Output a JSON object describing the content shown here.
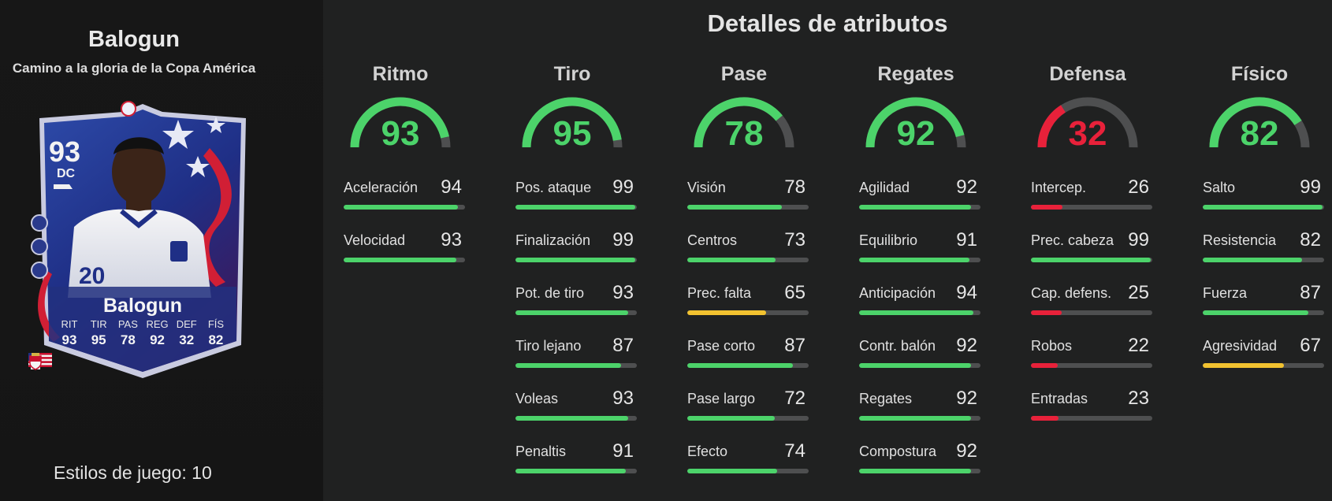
{
  "player": {
    "name": "Balogun",
    "subtitle": "Camino a la gloria de la Copa América",
    "styles_label": "Estilos de juego: 10"
  },
  "card": {
    "rating": "93",
    "position": "DC",
    "name": "Balogun",
    "stats": [
      {
        "label": "RIT",
        "value": "93"
      },
      {
        "label": "TIR",
        "value": "95"
      },
      {
        "label": "PAS",
        "value": "78"
      },
      {
        "label": "REG",
        "value": "92"
      },
      {
        "label": "DEF",
        "value": "32"
      },
      {
        "label": "FÍS",
        "value": "82"
      }
    ],
    "icons": [
      "usa-flag-icon",
      "ligue1-logo-icon",
      "monaco-crest-icon"
    ]
  },
  "details_title": "Detalles de atributos",
  "colors": {
    "green": "#4cd36a",
    "yellow": "#f2c230",
    "red": "#e8213a",
    "track": "#4e4f50"
  },
  "categories": [
    {
      "name": "Ritmo",
      "value": 93,
      "color": "green",
      "attributes": [
        {
          "label": "Aceleración",
          "value": 94,
          "color": "green"
        },
        {
          "label": "Velocidad",
          "value": 93,
          "color": "green"
        }
      ]
    },
    {
      "name": "Tiro",
      "value": 95,
      "color": "green",
      "attributes": [
        {
          "label": "Pos. ataque",
          "value": 99,
          "color": "green"
        },
        {
          "label": "Finalización",
          "value": 99,
          "color": "green"
        },
        {
          "label": "Pot. de tiro",
          "value": 93,
          "color": "green"
        },
        {
          "label": "Tiro lejano",
          "value": 87,
          "color": "green"
        },
        {
          "label": "Voleas",
          "value": 93,
          "color": "green"
        },
        {
          "label": "Penaltis",
          "value": 91,
          "color": "green"
        }
      ]
    },
    {
      "name": "Pase",
      "value": 78,
      "color": "green",
      "attributes": [
        {
          "label": "Visión",
          "value": 78,
          "color": "green"
        },
        {
          "label": "Centros",
          "value": 73,
          "color": "green"
        },
        {
          "label": "Prec. falta",
          "value": 65,
          "color": "yellow"
        },
        {
          "label": "Pase corto",
          "value": 87,
          "color": "green"
        },
        {
          "label": "Pase largo",
          "value": 72,
          "color": "green"
        },
        {
          "label": "Efecto",
          "value": 74,
          "color": "green"
        }
      ]
    },
    {
      "name": "Regates",
      "value": 92,
      "color": "green",
      "attributes": [
        {
          "label": "Agilidad",
          "value": 92,
          "color": "green"
        },
        {
          "label": "Equilibrio",
          "value": 91,
          "color": "green"
        },
        {
          "label": "Anticipación",
          "value": 94,
          "color": "green"
        },
        {
          "label": "Contr. balón",
          "value": 92,
          "color": "green"
        },
        {
          "label": "Regates",
          "value": 92,
          "color": "green"
        },
        {
          "label": "Compostura",
          "value": 92,
          "color": "green"
        }
      ]
    },
    {
      "name": "Defensa",
      "value": 32,
      "color": "red",
      "attributes": [
        {
          "label": "Intercep.",
          "value": 26,
          "color": "red"
        },
        {
          "label": "Prec. cabeza",
          "value": 99,
          "color": "green"
        },
        {
          "label": "Cap. defens.",
          "value": 25,
          "color": "red"
        },
        {
          "label": "Robos",
          "value": 22,
          "color": "red"
        },
        {
          "label": "Entradas",
          "value": 23,
          "color": "red"
        }
      ]
    },
    {
      "name": "Físico",
      "value": 82,
      "color": "green",
      "attributes": [
        {
          "label": "Salto",
          "value": 99,
          "color": "green"
        },
        {
          "label": "Resistencia",
          "value": 82,
          "color": "green"
        },
        {
          "label": "Fuerza",
          "value": 87,
          "color": "green"
        },
        {
          "label": "Agresividad",
          "value": 67,
          "color": "yellow"
        }
      ]
    }
  ]
}
